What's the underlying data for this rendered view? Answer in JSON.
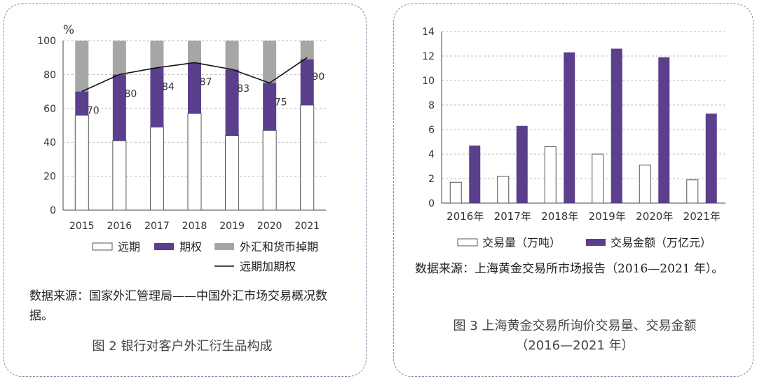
{
  "colors": {
    "purple": "#5b3f8c",
    "gray": "#a6a6a6",
    "white": "#ffffff",
    "line": "#111111",
    "grid": "#bdbdbd"
  },
  "left": {
    "source": "数据来源：国家外汇管理局——中国外汇市场交易概况数据。",
    "caption": "图 2 银行对客户外汇衍生品构成"
  },
  "right": {
    "source": "数据来源：上海黄金交易所市场报告（2016—2021 年）。",
    "caption_line1": "图 3 上海黄金交易所询价交易量、交易金额",
    "caption_line2": "（2016—2021 年）"
  },
  "chart_data": [
    {
      "type": "bar",
      "stacked": true,
      "ylabel": "%",
      "ylim": [
        0,
        100
      ],
      "yticks": [
        0,
        20,
        40,
        60,
        80,
        100
      ],
      "categories": [
        "2015",
        "2016",
        "2017",
        "2018",
        "2019",
        "2020",
        "2021"
      ],
      "series": [
        {
          "name": "远期",
          "values": [
            56,
            41,
            49,
            57,
            44,
            47,
            62
          ]
        },
        {
          "name": "期权",
          "values": [
            14,
            39,
            35,
            30,
            39,
            28,
            27
          ]
        },
        {
          "name": "外汇和货币掉期",
          "values": [
            30,
            20,
            16,
            13,
            17,
            25,
            11
          ]
        }
      ],
      "line": {
        "name": "远期加期权",
        "values": [
          70,
          80,
          84,
          87,
          83,
          75,
          90
        ]
      },
      "legend": [
        "远期",
        "期权",
        "外汇和货币掉期",
        "远期加期权"
      ]
    },
    {
      "type": "bar",
      "ylim": [
        0,
        14
      ],
      "yticks": [
        0,
        2,
        4,
        6,
        8,
        10,
        12,
        14
      ],
      "categories": [
        "2016年",
        "2017年",
        "2018年",
        "2019年",
        "2020年",
        "2021年"
      ],
      "series": [
        {
          "name": "交易量（万吨）",
          "values": [
            1.7,
            2.2,
            4.6,
            4.0,
            3.1,
            1.9
          ]
        },
        {
          "name": "交易金额（万亿元）",
          "values": [
            4.7,
            6.3,
            12.3,
            12.6,
            11.9,
            7.3
          ]
        }
      ],
      "legend": [
        "交易量（万吨）",
        "交易金额（万亿元）"
      ]
    }
  ]
}
